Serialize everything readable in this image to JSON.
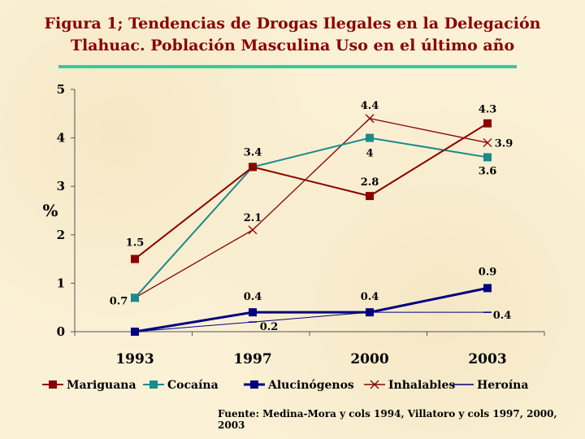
{
  "title_lines": [
    "Figura 1; Tendencias de Drogas Ilegales en  la Delegación",
    "Tlahuac. Población Masculina Uso en el último año"
  ],
  "source": "Fuente: Medina-Mora y cols 1994, Villatoro y cols 1997, 2000, 2003",
  "colors": {
    "title": "#8b0000",
    "rule": "#33cc99",
    "Mariguana": "#8b0000",
    "Cocaína": "#1a8a8a",
    "Alucinógenos": "#000080",
    "Inhalables": "#8b0000",
    "Heroína": "#000080"
  },
  "chart_data": {
    "type": "line",
    "title": "Figura 1; Tendencias de Drogas Ilegales en  la Delegación Tlahuac. Población Masculina Uso en el último año",
    "categories": [
      "1993",
      "1997",
      "2000",
      "2003"
    ],
    "ylabel": "%",
    "xlabel": "",
    "ylim": [
      0,
      5
    ],
    "yticks": [
      "0",
      "1",
      "2",
      "3",
      "4",
      "5"
    ],
    "grid": false,
    "legend_position": "bottom",
    "series": [
      {
        "name": "Mariguana",
        "values": [
          1.5,
          3.4,
          2.8,
          4.3
        ],
        "marker": "square",
        "labels": [
          "1.5",
          "3.4",
          "2.8",
          "4.3"
        ]
      },
      {
        "name": "Cocaína",
        "values": [
          0.7,
          3.4,
          4.0,
          3.6
        ],
        "marker": "square",
        "labels": [
          "0.7",
          "",
          "4",
          "3.6"
        ]
      },
      {
        "name": "Alucinógenos",
        "values": [
          0,
          0.4,
          0.4,
          0.9
        ],
        "marker": "square",
        "labels": [
          "",
          "0.4",
          "0.4",
          "0.9"
        ]
      },
      {
        "name": "Inhalables",
        "values": [
          0.7,
          2.1,
          4.4,
          3.9
        ],
        "marker": "x",
        "labels": [
          "",
          "2.1",
          "4.4",
          "3.9"
        ]
      },
      {
        "name": "Heroína",
        "values": [
          0,
          0.2,
          0.4,
          0.4
        ],
        "marker": "dash",
        "labels": [
          "",
          "0.2",
          "",
          "0.4"
        ]
      }
    ]
  }
}
